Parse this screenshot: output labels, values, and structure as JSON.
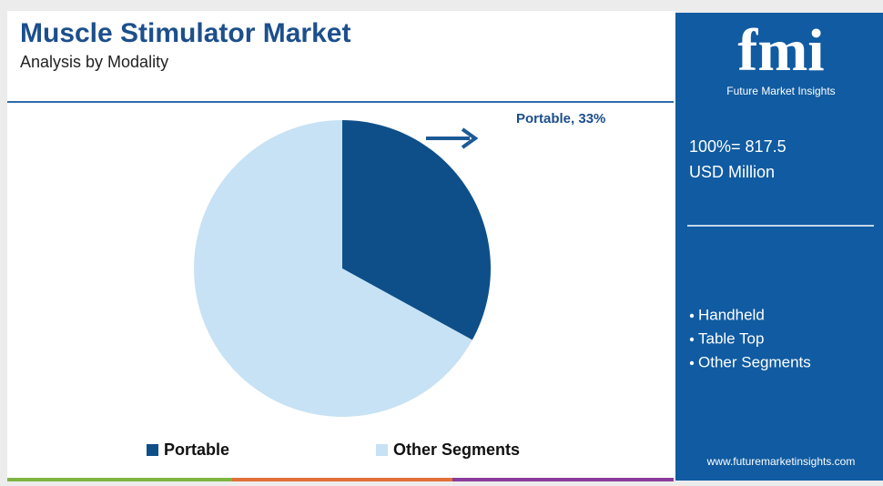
{
  "chart_data": {
    "type": "pie",
    "title": "Muscle Stimulator Market",
    "subtitle": "Analysis by Modality",
    "categories": [
      "Portable",
      "Other Segments"
    ],
    "values": [
      33,
      67
    ],
    "value_labels": [
      "Portable, 33%",
      null
    ],
    "colors": [
      "#0e4f8a",
      "#c7e2f4"
    ]
  },
  "sidebar": {
    "logo": "fmi",
    "brand": "Future Market Insights",
    "total": "100%= 817.5",
    "unit": "USD Million",
    "segments": [
      "Handheld",
      "Table Top",
      "Other Segments"
    ],
    "url": "www.futuremarketinsights.com"
  }
}
